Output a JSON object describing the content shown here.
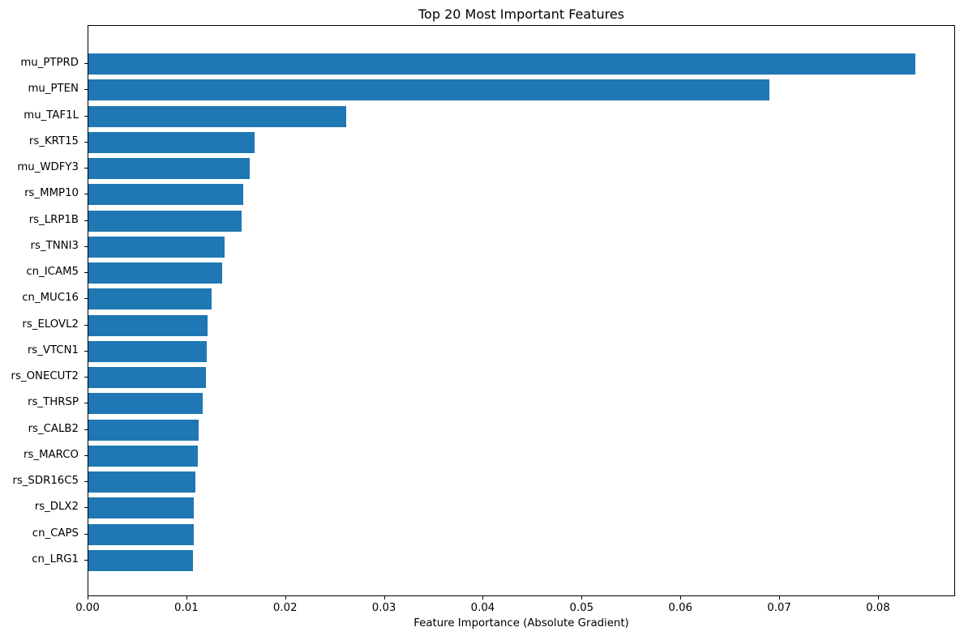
{
  "chart_data": {
    "type": "bar",
    "orientation": "horizontal",
    "title": "Top 20 Most Important Features",
    "xlabel": "Feature Importance (Absolute Gradient)",
    "ylabel": "",
    "categories": [
      "mu_PTPRD",
      "mu_PTEN",
      "mu_TAF1L",
      "rs_KRT15",
      "mu_WDFY3",
      "rs_MMP10",
      "rs_LRP1B",
      "rs_TNNI3",
      "cn_ICAM5",
      "cn_MUC16",
      "rs_ELOVL2",
      "rs_VTCN1",
      "rs_ONECUT2",
      "rs_THRSP",
      "rs_CALB2",
      "rs_MARCO",
      "rs_SDR16C5",
      "rs_DLX2",
      "cn_CAPS",
      "cn_LRG1"
    ],
    "values": [
      0.0837,
      0.0689,
      0.0261,
      0.0168,
      0.0163,
      0.0157,
      0.0155,
      0.0138,
      0.0135,
      0.0125,
      0.0121,
      0.012,
      0.0119,
      0.0116,
      0.0112,
      0.0111,
      0.0108,
      0.0107,
      0.0107,
      0.0106
    ],
    "xlim": [
      0,
      0.0878
    ],
    "xticks": [
      0.0,
      0.01,
      0.02,
      0.03,
      0.04,
      0.05,
      0.06,
      0.07,
      0.08
    ],
    "xtick_labels": [
      "0.00",
      "0.01",
      "0.02",
      "0.03",
      "0.04",
      "0.05",
      "0.06",
      "0.07",
      "0.08"
    ],
    "bar_color": "#1f77b4",
    "grid": false,
    "legend_position": "none"
  }
}
